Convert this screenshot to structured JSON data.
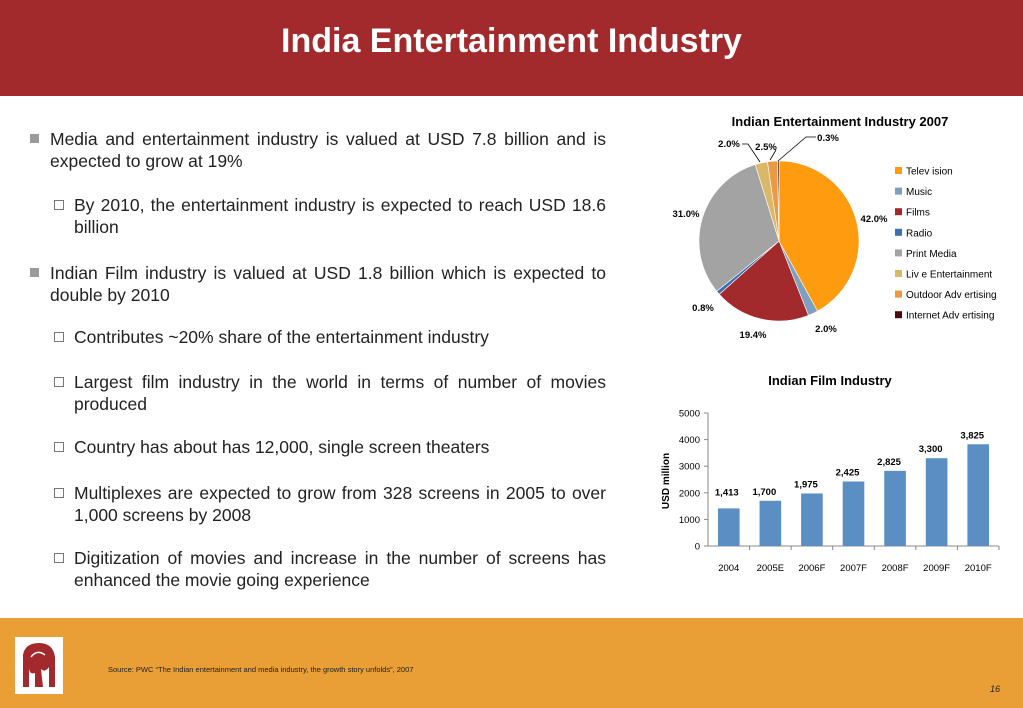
{
  "header": {
    "title": "India Entertainment Industry",
    "background": "#a32a2c"
  },
  "bullets": [
    {
      "level": 1,
      "text": "Media and entertainment industry is valued at USD 7.8 billion and is expected to grow at 19%"
    },
    {
      "level": 2,
      "text": "By 2010, the entertainment industry is expected to reach USD 18.6 billion"
    },
    {
      "level": 1,
      "text": "Indian Film industry is valued at USD 1.8 billion which is expected to double by 2010"
    },
    {
      "level": 2,
      "text": "Contributes ~20% share of the entertainment industry"
    },
    {
      "level": 2,
      "text": "Largest film industry in the world in terms of number of movies produced"
    },
    {
      "level": 2,
      "text": "Country has about has 12,000, single screen theaters"
    },
    {
      "level": 2,
      "text": "Multiplexes are expected to grow from 328 screens in 2005 to over 1,000 screens by 2008"
    },
    {
      "level": 2,
      "text": "Digitization of movies and increase in the number of screens has enhanced the movie going experience"
    }
  ],
  "footer": {
    "source": "Source: PWC “The Indian entertainment and media industry, the growth story unfolds”, 2007",
    "page_number": "16",
    "background": "#e99e36",
    "logo_icon": "elephant-logo-icon"
  },
  "chart_data": [
    {
      "type": "pie",
      "title": "Indian Entertainment Industry 2007",
      "labels": [
        "Television",
        "Music",
        "Films",
        "Radio",
        "Print Media",
        "Live Entertainment",
        "Outdoor Advertising",
        "Internet Advertising"
      ],
      "legend_labels": [
        "Telev ision",
        "Music",
        "Films",
        "Radio",
        "Print Media",
        "Liv e Entertainment",
        "Outdoor Adv ertising",
        "Internet Adv ertising"
      ],
      "values": [
        42.0,
        2.0,
        19.4,
        0.8,
        31.0,
        2.5,
        2.0,
        0.3
      ],
      "value_labels": [
        "42.0%",
        "2.0%",
        "19.4%",
        "0.8%",
        "31.0%",
        "2.5%",
        "2.0%",
        "0.3%"
      ],
      "colors": [
        "#ff9b0f",
        "#7f9fbf",
        "#a32a2c",
        "#3d6fb0",
        "#a3a3a3",
        "#dab86a",
        "#ea9a41",
        "#4b0a0a"
      ],
      "legend": "right"
    },
    {
      "type": "bar",
      "title": "Indian Film Industry",
      "categories": [
        "2004",
        "2005E",
        "2006F",
        "2007F",
        "2008F",
        "2009F",
        "2010F"
      ],
      "values": [
        1413,
        1700,
        1975,
        2425,
        2825,
        3300,
        3825
      ],
      "value_labels": [
        "1,413",
        "1,700",
        "1,975",
        "2,425",
        "2,825",
        "3,300",
        "3,825"
      ],
      "ylabel": "USD million",
      "ylim": [
        0,
        5000
      ],
      "yticks": [
        "0",
        "1000",
        "2000",
        "3000",
        "4000",
        "5000"
      ],
      "color": "#5b8fc4",
      "grid": false
    }
  ]
}
